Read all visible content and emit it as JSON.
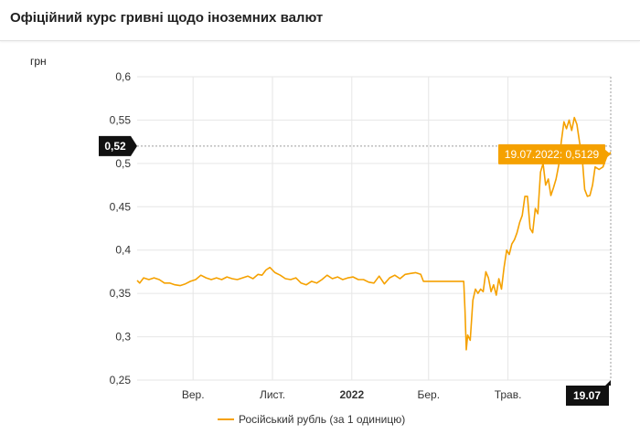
{
  "header": {
    "title": "Офіційний курс гривні щодо іноземних валют"
  },
  "chart_data": {
    "type": "line",
    "ylabel": "грн",
    "ylim": [
      0.25,
      0.6
    ],
    "y_ticks": [
      "0,6",
      "0,55",
      "0,5",
      "0,45",
      "0,4",
      "0,35",
      "0,3",
      "0,25"
    ],
    "y_tick_values": [
      0.6,
      0.55,
      0.5,
      0.45,
      0.4,
      0.35,
      0.3,
      0.25
    ],
    "x_range": [
      "2021-07-20",
      "2022-07-19"
    ],
    "x_ticks": [
      {
        "label": "Вер.",
        "date": "2021-09-01",
        "bold": false
      },
      {
        "label": "Лист.",
        "date": "2021-11-01",
        "bold": false
      },
      {
        "label": "2022",
        "date": "2022-01-01",
        "bold": true
      },
      {
        "label": "Бер.",
        "date": "2022-03-01",
        "bold": false
      },
      {
        "label": "Трав.",
        "date": "2022-05-01",
        "bold": false
      }
    ],
    "crosshair": {
      "y_label": "0,52",
      "y_value": 0.52,
      "x_label": "19.07",
      "x_date": "2022-07-19",
      "tooltip": "19.07.2022: 0,5129"
    },
    "series": [
      {
        "name": "Російський рубль (за 1 одиницю)",
        "color": "#f5a100",
        "points": [
          [
            "2021-07-20",
            0.365
          ],
          [
            "2021-07-22",
            0.362
          ],
          [
            "2021-07-25",
            0.368
          ],
          [
            "2021-07-29",
            0.366
          ],
          [
            "2021-08-02",
            0.368
          ],
          [
            "2021-08-06",
            0.366
          ],
          [
            "2021-08-10",
            0.362
          ],
          [
            "2021-08-14",
            0.362
          ],
          [
            "2021-08-18",
            0.36
          ],
          [
            "2021-08-22",
            0.359
          ],
          [
            "2021-08-26",
            0.361
          ],
          [
            "2021-08-30",
            0.364
          ],
          [
            "2021-09-03",
            0.366
          ],
          [
            "2021-09-07",
            0.371
          ],
          [
            "2021-09-11",
            0.368
          ],
          [
            "2021-09-15",
            0.366
          ],
          [
            "2021-09-19",
            0.368
          ],
          [
            "2021-09-23",
            0.366
          ],
          [
            "2021-09-27",
            0.369
          ],
          [
            "2021-10-01",
            0.367
          ],
          [
            "2021-10-05",
            0.366
          ],
          [
            "2021-10-09",
            0.368
          ],
          [
            "2021-10-13",
            0.37
          ],
          [
            "2021-10-17",
            0.367
          ],
          [
            "2021-10-21",
            0.372
          ],
          [
            "2021-10-24",
            0.371
          ],
          [
            "2021-10-27",
            0.377
          ],
          [
            "2021-10-30",
            0.38
          ],
          [
            "2021-11-03",
            0.374
          ],
          [
            "2021-11-07",
            0.371
          ],
          [
            "2021-11-11",
            0.367
          ],
          [
            "2021-11-15",
            0.366
          ],
          [
            "2021-11-19",
            0.368
          ],
          [
            "2021-11-23",
            0.362
          ],
          [
            "2021-11-27",
            0.36
          ],
          [
            "2021-12-01",
            0.364
          ],
          [
            "2021-12-05",
            0.362
          ],
          [
            "2021-12-09",
            0.366
          ],
          [
            "2021-12-13",
            0.371
          ],
          [
            "2021-12-17",
            0.367
          ],
          [
            "2021-12-21",
            0.369
          ],
          [
            "2021-12-25",
            0.366
          ],
          [
            "2021-12-29",
            0.368
          ],
          [
            "2022-01-02",
            0.369
          ],
          [
            "2022-01-06",
            0.366
          ],
          [
            "2022-01-10",
            0.366
          ],
          [
            "2022-01-14",
            0.363
          ],
          [
            "2022-01-18",
            0.362
          ],
          [
            "2022-01-22",
            0.37
          ],
          [
            "2022-01-26",
            0.361
          ],
          [
            "2022-01-30",
            0.368
          ],
          [
            "2022-02-03",
            0.371
          ],
          [
            "2022-02-07",
            0.367
          ],
          [
            "2022-02-11",
            0.372
          ],
          [
            "2022-02-15",
            0.373
          ],
          [
            "2022-02-19",
            0.374
          ],
          [
            "2022-02-23",
            0.372
          ],
          [
            "2022-02-25",
            0.364
          ],
          [
            "2022-03-03",
            0.364
          ],
          [
            "2022-03-08",
            0.364
          ],
          [
            "2022-03-13",
            0.364
          ],
          [
            "2022-03-18",
            0.364
          ],
          [
            "2022-03-23",
            0.364
          ],
          [
            "2022-03-28",
            0.364
          ],
          [
            "2022-03-29",
            0.33
          ],
          [
            "2022-03-30",
            0.285
          ],
          [
            "2022-03-31",
            0.302
          ],
          [
            "2022-04-02",
            0.296
          ],
          [
            "2022-04-04",
            0.342
          ],
          [
            "2022-04-06",
            0.355
          ],
          [
            "2022-04-08",
            0.35
          ],
          [
            "2022-04-10",
            0.355
          ],
          [
            "2022-04-12",
            0.352
          ],
          [
            "2022-04-14",
            0.375
          ],
          [
            "2022-04-16",
            0.368
          ],
          [
            "2022-04-18",
            0.352
          ],
          [
            "2022-04-20",
            0.36
          ],
          [
            "2022-04-22",
            0.348
          ],
          [
            "2022-04-24",
            0.367
          ],
          [
            "2022-04-26",
            0.355
          ],
          [
            "2022-04-28",
            0.38
          ],
          [
            "2022-04-30",
            0.4
          ],
          [
            "2022-05-02",
            0.395
          ],
          [
            "2022-05-04",
            0.407
          ],
          [
            "2022-05-06",
            0.412
          ],
          [
            "2022-05-08",
            0.42
          ],
          [
            "2022-05-10",
            0.432
          ],
          [
            "2022-05-12",
            0.44
          ],
          [
            "2022-05-14",
            0.462
          ],
          [
            "2022-05-16",
            0.462
          ],
          [
            "2022-05-18",
            0.425
          ],
          [
            "2022-05-20",
            0.42
          ],
          [
            "2022-05-22",
            0.448
          ],
          [
            "2022-05-24",
            0.442
          ],
          [
            "2022-05-26",
            0.49
          ],
          [
            "2022-05-28",
            0.5
          ],
          [
            "2022-05-30",
            0.475
          ],
          [
            "2022-06-01",
            0.482
          ],
          [
            "2022-06-03",
            0.463
          ],
          [
            "2022-06-05",
            0.472
          ],
          [
            "2022-06-07",
            0.482
          ],
          [
            "2022-06-09",
            0.498
          ],
          [
            "2022-06-11",
            0.525
          ],
          [
            "2022-06-13",
            0.548
          ],
          [
            "2022-06-15",
            0.54
          ],
          [
            "2022-06-17",
            0.55
          ],
          [
            "2022-06-19",
            0.538
          ],
          [
            "2022-06-21",
            0.553
          ],
          [
            "2022-06-23",
            0.545
          ],
          [
            "2022-06-25",
            0.525
          ],
          [
            "2022-06-27",
            0.508
          ],
          [
            "2022-06-29",
            0.47
          ],
          [
            "2022-07-01",
            0.462
          ],
          [
            "2022-07-03",
            0.463
          ],
          [
            "2022-07-05",
            0.475
          ],
          [
            "2022-07-07",
            0.496
          ],
          [
            "2022-07-10",
            0.493
          ],
          [
            "2022-07-13",
            0.496
          ],
          [
            "2022-07-16",
            0.508
          ],
          [
            "2022-07-19",
            0.5129
          ]
        ]
      }
    ],
    "grid": true,
    "legend": "bottom"
  }
}
